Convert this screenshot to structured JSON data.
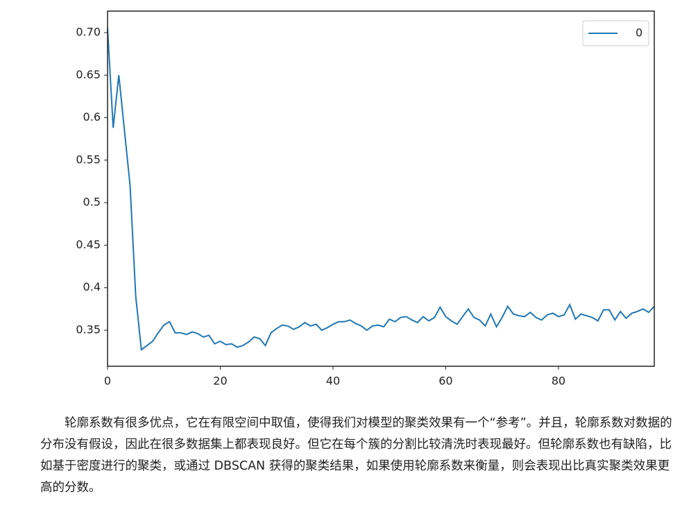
{
  "chart_data": {
    "type": "line",
    "x": [
      0,
      1,
      2,
      3,
      4,
      5,
      6,
      7,
      8,
      9,
      10,
      11,
      12,
      13,
      14,
      15,
      16,
      17,
      18,
      19,
      20,
      21,
      22,
      23,
      24,
      25,
      26,
      27,
      28,
      29,
      30,
      31,
      32,
      33,
      34,
      35,
      36,
      37,
      38,
      39,
      40,
      41,
      42,
      43,
      44,
      45,
      46,
      47,
      48,
      49,
      50,
      51,
      52,
      53,
      54,
      55,
      56,
      57,
      58,
      59,
      60,
      61,
      62,
      63,
      64,
      65,
      66,
      67,
      68,
      69,
      70,
      71,
      72,
      73,
      74,
      75,
      76,
      77,
      78,
      79,
      80,
      81,
      82,
      83,
      84,
      85,
      86,
      87,
      88,
      89,
      90,
      91,
      92,
      93,
      94,
      95,
      96,
      97
    ],
    "series": [
      {
        "name": "0",
        "color": "#1f77b4",
        "values": [
          0.705,
          0.588,
          0.65,
          0.585,
          0.52,
          0.39,
          0.327,
          0.332,
          0.337,
          0.347,
          0.356,
          0.36,
          0.347,
          0.347,
          0.345,
          0.348,
          0.346,
          0.342,
          0.344,
          0.334,
          0.337,
          0.333,
          0.334,
          0.33,
          0.332,
          0.336,
          0.342,
          0.34,
          0.332,
          0.347,
          0.352,
          0.356,
          0.355,
          0.351,
          0.354,
          0.359,
          0.355,
          0.357,
          0.35,
          0.353,
          0.357,
          0.36,
          0.36,
          0.362,
          0.358,
          0.355,
          0.35,
          0.355,
          0.356,
          0.354,
          0.363,
          0.36,
          0.365,
          0.366,
          0.362,
          0.359,
          0.366,
          0.361,
          0.365,
          0.377,
          0.366,
          0.361,
          0.357,
          0.366,
          0.375,
          0.365,
          0.362,
          0.355,
          0.369,
          0.354,
          0.365,
          0.378,
          0.369,
          0.367,
          0.366,
          0.371,
          0.365,
          0.362,
          0.368,
          0.37,
          0.366,
          0.368,
          0.38,
          0.363,
          0.369,
          0.367,
          0.365,
          0.361,
          0.374,
          0.374,
          0.362,
          0.372,
          0.364,
          0.37,
          0.372,
          0.375,
          0.371,
          0.378
        ]
      }
    ],
    "xlim": [
      0,
      97
    ],
    "xticks": [
      0,
      20,
      40,
      60,
      80
    ],
    "ylim": [
      0.3076,
      0.7253
    ],
    "yticks": [
      0.35,
      0.4,
      0.45,
      0.5,
      0.55,
      0.6,
      0.65,
      {
        "value": 0.7,
        "label": "0.70"
      }
    ],
    "legend": "upper right"
  },
  "paragraph": "轮廓系数有很多优点，它在有限空间中取值，使得我们对模型的聚类效果有一个“参考”。并且，轮廓系数对数据的分布没有假设，因此在很多数据集上都表现良好。但它在每个簇的分割比较清洗时表现最好。但轮廓系数也有缺陷，比如基于密度进行的聚类，或通过 DBSCAN 获得的聚类结果，如果使用轮廓系数来衡量，则会表现出比真实聚类效果更高的分数。"
}
